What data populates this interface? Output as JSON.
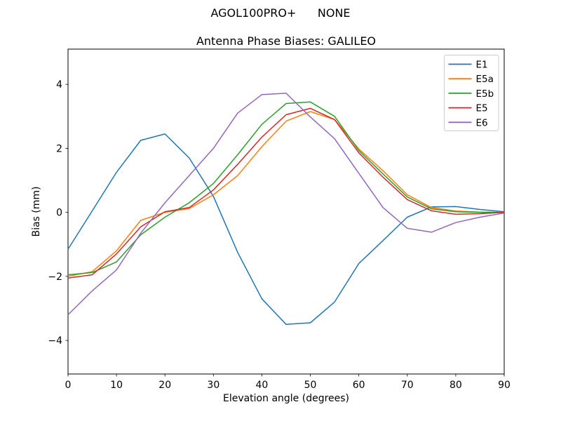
{
  "header": {
    "suptitle": "AGOL100PRO+      NONE"
  },
  "chart_data": {
    "type": "line",
    "title": "Antenna Phase Biases: GALILEO",
    "xlabel": "Elevation angle (degrees)",
    "ylabel": "Bias (mm)",
    "xlim": [
      0,
      90
    ],
    "ylim": [
      -5.05,
      5.1
    ],
    "xticks": [
      0,
      10,
      20,
      30,
      40,
      50,
      60,
      70,
      80,
      90
    ],
    "yticks": [
      -4,
      -2,
      0,
      2,
      4
    ],
    "grid": false,
    "legend_position": "upper right",
    "x": [
      0,
      5,
      10,
      15,
      20,
      25,
      30,
      35,
      40,
      45,
      50,
      55,
      60,
      65,
      70,
      75,
      80,
      85,
      90
    ],
    "series": [
      {
        "name": "E1",
        "color": "#1f77b4",
        "values": [
          -1.15,
          0.05,
          1.25,
          2.25,
          2.45,
          1.7,
          0.5,
          -1.25,
          -2.7,
          -3.5,
          -3.45,
          -2.8,
          -1.6,
          -0.88,
          -0.15,
          0.17,
          0.18,
          0.09,
          0.02
        ]
      },
      {
        "name": "E5a",
        "color": "#ff7f0e",
        "values": [
          -2.0,
          -1.85,
          -1.2,
          -0.25,
          0.0,
          0.12,
          0.55,
          1.15,
          2.05,
          2.85,
          3.15,
          2.9,
          1.98,
          1.3,
          0.55,
          0.15,
          0.04,
          0.01,
          0.0
        ]
      },
      {
        "name": "E5b",
        "color": "#2ca02c",
        "values": [
          -1.95,
          -1.88,
          -1.55,
          -0.7,
          -0.15,
          0.3,
          0.9,
          1.8,
          2.75,
          3.4,
          3.45,
          3.0,
          1.93,
          1.2,
          0.48,
          0.11,
          0.02,
          0.0,
          0.0
        ]
      },
      {
        "name": "E5",
        "color": "#d62728",
        "values": [
          -2.05,
          -1.95,
          -1.3,
          -0.45,
          0.02,
          0.15,
          0.7,
          1.5,
          2.35,
          3.05,
          3.25,
          2.9,
          1.86,
          1.1,
          0.4,
          0.05,
          -0.06,
          -0.04,
          0.0
        ]
      },
      {
        "name": "E6",
        "color": "#9467bd",
        "values": [
          -3.2,
          -2.45,
          -1.8,
          -0.65,
          0.3,
          1.15,
          2.0,
          3.1,
          3.68,
          3.72,
          2.98,
          2.3,
          1.22,
          0.15,
          -0.5,
          -0.62,
          -0.32,
          -0.15,
          -0.02
        ]
      }
    ],
    "style": {
      "line_width": 1.5,
      "frame_color": "#000000",
      "legend_border_color": "#cccccc",
      "background": "#ffffff"
    }
  }
}
